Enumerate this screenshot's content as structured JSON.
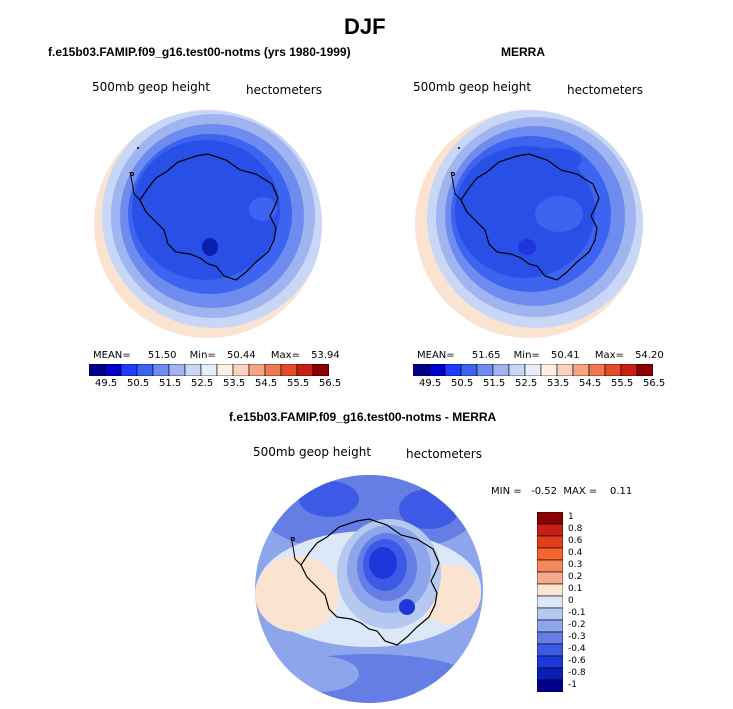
{
  "figure": {
    "title": "DJF",
    "panel_left": {
      "title": "f.e15b03.FAMIP.f09_g16.test00-notms (yrs 1980-1999)",
      "variable": "500mb geop height",
      "units": "hectometers",
      "mean_label": "MEAN=",
      "mean": "51.50",
      "min_label": "Min=",
      "min": "50.44",
      "max_label": "Max=",
      "max": "53.94"
    },
    "panel_right": {
      "title": "MERRA",
      "variable": "500mb geop height",
      "units": "hectometers",
      "mean_label": "MEAN=",
      "mean": "51.65",
      "min_label": "Min=",
      "min": "50.41",
      "max_label": "Max=",
      "max": "54.20"
    },
    "panel_diff": {
      "title": "f.e15b03.FAMIP.f09_g16.test00-notms - MERRA",
      "variable": "500mb geop height",
      "units": "hectometers",
      "minmax_text": "MIN =   -0.52  MAX =    0.11"
    },
    "abs_colorbar": {
      "colors": [
        "#00008b",
        "#0000cd",
        "#1e3cff",
        "#3c64f0",
        "#6e8cf0",
        "#a0b4f0",
        "#c8d7f5",
        "#e6eefa",
        "#fff0e6",
        "#fbd2bd",
        "#f5a582",
        "#f07850",
        "#e64b28",
        "#c81e14",
        "#8b0000"
      ],
      "labels": [
        "49.5",
        "50.5",
        "51.5",
        "52.5",
        "53.5",
        "54.5",
        "55.5",
        "56.5"
      ]
    },
    "diff_colorbar": {
      "colors": [
        "#8b0000",
        "#c81e14",
        "#e63c1e",
        "#f5642d",
        "#f5875a",
        "#f5aa8c",
        "#fde6d2",
        "#dce8f8",
        "#b4c8f0",
        "#8ca5eb",
        "#647ee6",
        "#3c5ae6",
        "#1e37dc",
        "#0a1eb4",
        "#00008b"
      ],
      "labels": [
        "1",
        "0.8",
        "0.6",
        "0.4",
        "0.3",
        "0.2",
        "0.1",
        "0",
        "-0.1",
        "-0.2",
        "-0.3",
        "-0.4",
        "-0.6",
        "-0.8",
        "-1"
      ]
    },
    "colors": {
      "deep_blue": "#2850e6",
      "mid_blue": "#3c64f0",
      "light_blue": "#8ca5eb",
      "pale_blue": "#c8d7f5",
      "peach": "#fbe3d2",
      "land_outline": "#000000"
    }
  }
}
